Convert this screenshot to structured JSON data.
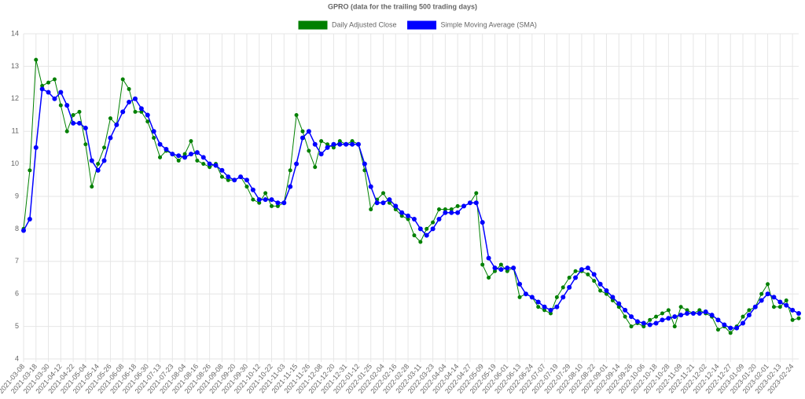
{
  "chart_data": {
    "type": "line",
    "title": "GPRO (data for the trailing 500 trading days)",
    "categories": [
      "2021-03-08",
      null,
      "2021-03-18",
      null,
      "2021-03-30",
      null,
      "2021-04-12",
      null,
      "2021-04-22",
      null,
      "2021-05-04",
      null,
      "2021-05-14",
      null,
      "2021-05-26",
      null,
      "2021-06-08",
      null,
      "2021-06-18",
      null,
      "2021-06-30",
      null,
      "2021-07-13",
      null,
      "2021-07-23",
      null,
      "2021-08-04",
      null,
      "2021-08-16",
      null,
      "2021-08-26",
      null,
      "2021-09-08",
      null,
      "2021-09-20",
      null,
      "2021-09-30",
      null,
      "2021-10-12",
      null,
      "2021-10-22",
      null,
      "2021-11-03",
      null,
      "2021-11-15",
      null,
      "2021-11-26",
      null,
      "2021-12-08",
      null,
      "2021-12-20",
      null,
      "2021-12-31",
      null,
      "2022-01-12",
      null,
      "2022-01-25",
      null,
      "2022-02-04",
      null,
      "2022-02-16",
      null,
      "2022-02-28",
      null,
      "2022-03-11",
      null,
      "2022-03-23",
      null,
      "2022-04-04",
      null,
      "2022-04-14",
      null,
      "2022-04-27",
      null,
      "2022-05-09",
      null,
      "2022-05-19",
      null,
      "2022-06-01",
      null,
      "2022-06-13",
      null,
      "2022-06-24",
      null,
      "2022-07-07",
      null,
      "2022-07-19",
      null,
      "2022-07-29",
      null,
      "2022-08-10",
      null,
      "2022-08-22",
      null,
      "2022-09-01",
      null,
      "2022-09-14",
      null,
      "2022-09-26",
      null,
      "2022-10-06",
      null,
      "2022-10-18",
      null,
      "2022-10-28",
      null,
      "2022-11-09",
      null,
      "2022-11-21",
      null,
      "2022-12-02",
      null,
      "2022-12-14",
      null,
      "2022-12-27",
      null,
      "2023-01-09",
      null,
      "2023-01-20",
      null,
      "2023-02-01",
      null,
      "2023-02-13",
      null,
      "2023-02-24",
      null
    ],
    "series": [
      {
        "name": "Daily Adjusted Close",
        "color": "#008000",
        "values": [
          8.0,
          9.8,
          13.2,
          12.4,
          12.5,
          12.6,
          11.8,
          11.0,
          11.5,
          11.6,
          10.6,
          9.3,
          10.0,
          10.5,
          11.4,
          11.2,
          12.6,
          12.3,
          11.6,
          11.6,
          11.3,
          10.8,
          10.2,
          10.4,
          10.3,
          10.1,
          10.3,
          10.7,
          10.1,
          10.0,
          9.9,
          10.0,
          9.6,
          9.5,
          9.5,
          9.6,
          9.3,
          8.9,
          8.8,
          9.1,
          8.7,
          8.7,
          8.8,
          9.8,
          11.5,
          11.0,
          10.4,
          9.9,
          10.7,
          10.6,
          10.5,
          10.7,
          10.6,
          10.7,
          10.6,
          9.8,
          8.6,
          8.9,
          9.1,
          8.8,
          8.6,
          8.4,
          8.3,
          7.8,
          7.6,
          8.0,
          8.2,
          8.6,
          8.6,
          8.6,
          8.7,
          8.7,
          8.8,
          9.1,
          6.9,
          6.5,
          6.7,
          6.9,
          6.7,
          6.8,
          5.9,
          6.0,
          5.9,
          5.6,
          5.5,
          5.4,
          5.9,
          6.2,
          6.5,
          6.7,
          6.7,
          6.6,
          6.4,
          6.1,
          6.0,
          5.8,
          5.6,
          5.3,
          5.0,
          5.1,
          5.0,
          5.2,
          5.3,
          5.4,
          5.5,
          5.0,
          5.6,
          5.5,
          5.4,
          5.5,
          5.4,
          5.3,
          4.9,
          5.0,
          4.8,
          5.0,
          5.3,
          5.5,
          5.6,
          6.0,
          6.3,
          5.6,
          5.6,
          5.8,
          5.2,
          5.25
        ]
      },
      {
        "name": "Simple Moving Average (SMA)",
        "color": "#0000ff",
        "values": [
          7.95,
          8.3,
          10.5,
          12.3,
          12.2,
          12.0,
          12.2,
          11.8,
          11.25,
          11.25,
          11.1,
          10.1,
          9.8,
          10.1,
          10.8,
          11.2,
          11.6,
          11.9,
          12.0,
          11.7,
          11.5,
          11.0,
          10.6,
          10.45,
          10.3,
          10.25,
          10.2,
          10.3,
          10.35,
          10.2,
          10.0,
          9.95,
          9.8,
          9.6,
          9.5,
          9.6,
          9.5,
          9.2,
          8.9,
          8.9,
          8.9,
          8.8,
          8.8,
          9.3,
          10.0,
          10.8,
          11.0,
          10.6,
          10.3,
          10.5,
          10.6,
          10.6,
          10.6,
          10.6,
          10.6,
          10.0,
          9.3,
          8.8,
          8.8,
          8.9,
          8.7,
          8.5,
          8.4,
          8.3,
          8.0,
          7.8,
          8.0,
          8.3,
          8.5,
          8.5,
          8.5,
          8.7,
          8.8,
          8.8,
          8.2,
          7.1,
          6.8,
          6.75,
          6.8,
          6.8,
          6.3,
          6.0,
          5.9,
          5.75,
          5.6,
          5.5,
          5.6,
          5.9,
          6.2,
          6.5,
          6.75,
          6.8,
          6.6,
          6.3,
          6.1,
          5.9,
          5.7,
          5.5,
          5.3,
          5.15,
          5.1,
          5.05,
          5.1,
          5.2,
          5.25,
          5.3,
          5.35,
          5.4,
          5.4,
          5.4,
          5.45,
          5.35,
          5.2,
          5.05,
          4.95,
          4.95,
          5.1,
          5.35,
          5.6,
          5.8,
          6.0,
          5.9,
          5.75,
          5.65,
          5.5,
          5.4
        ]
      }
    ],
    "ylim": [
      4,
      14
    ],
    "yticks": [
      4,
      5,
      6,
      7,
      8,
      9,
      10,
      11,
      12,
      13,
      14
    ],
    "grid": true,
    "legend": "top"
  }
}
